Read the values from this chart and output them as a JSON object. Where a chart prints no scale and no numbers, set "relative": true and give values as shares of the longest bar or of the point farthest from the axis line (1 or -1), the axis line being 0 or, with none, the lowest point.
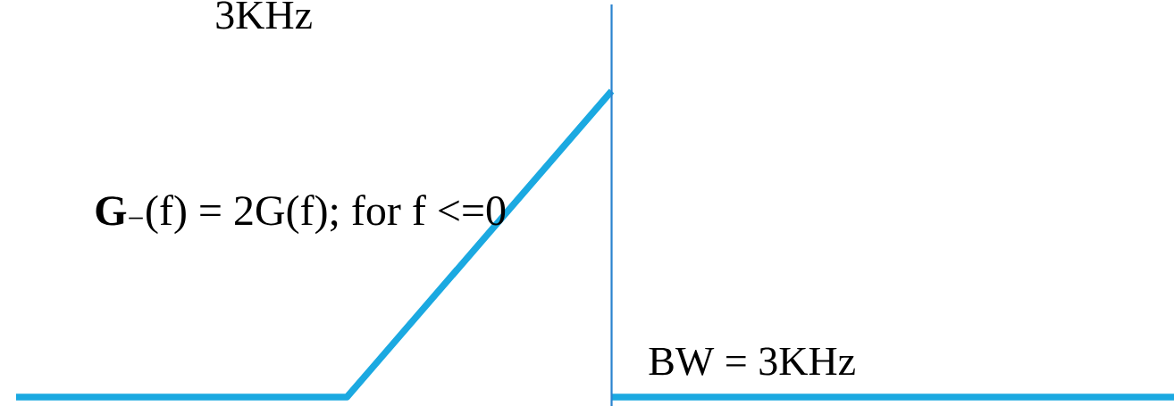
{
  "chart_data": {
    "type": "line",
    "relative": true,
    "categories": [
      null,
      null,
      null,
      null,
      null,
      null,
      null,
      null,
      null,
      null,
      null,
      null,
      null,
      null,
      null,
      null,
      null,
      null,
      null,
      null,
      null,
      null,
      null,
      null,
      null,
      null,
      null,
      null,
      null,
      null,
      null,
      null,
      null,
      null,
      null,
      null
    ],
    "series": [
      {
        "color": "#1ba9e1",
        "values": [
          0,
          0,
          0,
          0,
          0,
          0,
          0,
          0,
          0,
          0,
          0,
          0.125,
          0.25,
          0.375,
          0.5,
          0.625,
          0.75,
          0.875,
          1,
          null,
          null,
          null,
          null,
          null,
          null,
          null,
          null,
          null,
          null,
          null,
          null,
          null,
          null,
          null,
          null,
          null
        ]
      },
      {
        "color": "#1ba9e1",
        "values": [
          null,
          null,
          null,
          null,
          null,
          null,
          null,
          null,
          null,
          null,
          null,
          null,
          null,
          null,
          null,
          null,
          null,
          null,
          0,
          0,
          0,
          0,
          0,
          0,
          0,
          0,
          0,
          0,
          0,
          0,
          0,
          0,
          0,
          0,
          0,
          0
        ]
      }
    ],
    "annotations": [
      "3KHz",
      "**G**$_{−}$(f) = 2G(f); for f <=0",
      "BW = 3KHz"
    ]
  }
}
